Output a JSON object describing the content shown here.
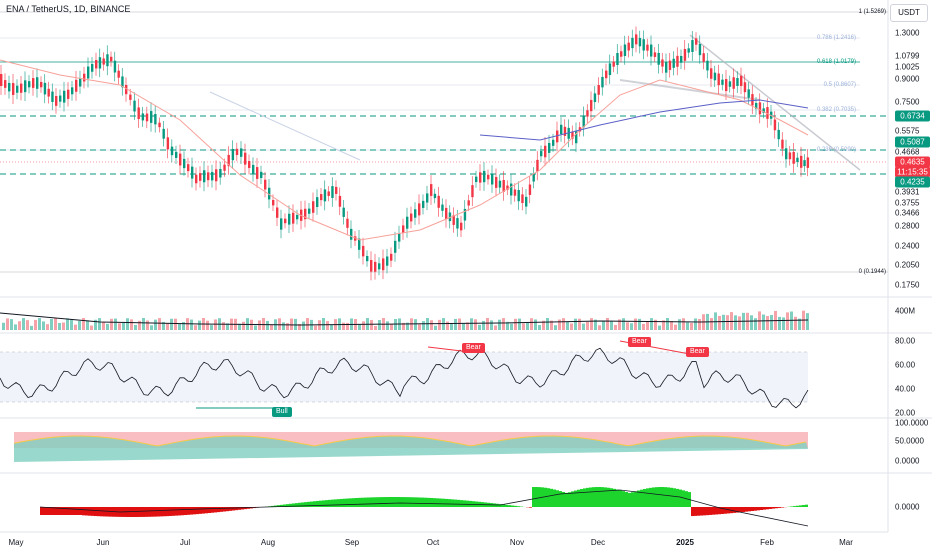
{
  "header": {
    "symbol_title": "ENA / TetherUS, 1D, BINANCE",
    "currency": "USDT"
  },
  "price_axis": {
    "labels": [
      "1.3000",
      "1.0799",
      "1.0025",
      "0.9000",
      "0.7500",
      "0.5575",
      "0.4668",
      "0.3931",
      "0.3755",
      "0.3466",
      "0.2800",
      "0.2400",
      "0.2050",
      "0.1750"
    ]
  },
  "price_badges": {
    "level_high": {
      "value": "0.6734",
      "color": "#089981"
    },
    "level_mid": {
      "value": "0.5087",
      "color": "#089981"
    },
    "last_price": {
      "value": "0.4635",
      "color": "#f23645"
    },
    "countdown": {
      "value": "11:15:35",
      "color": "#f23645"
    },
    "level_low": {
      "value": "0.4235",
      "color": "#089981"
    }
  },
  "fib_levels": [
    {
      "label": "1 (1.5269)",
      "color": "#131722"
    },
    {
      "label": "0.786 (1.2416)",
      "color": "#9db2d8"
    },
    {
      "label": "0.618 (1.0179)",
      "color": "#089981"
    },
    {
      "label": "0.5 (0.8607)",
      "color": "#9db2d8"
    },
    {
      "label": "0.382 (0.7035)",
      "color": "#9db2d8"
    },
    {
      "label": "0.236 (0.5090)",
      "color": "#9db2d8"
    },
    {
      "label": "0 (0.1944)",
      "color": "#131722"
    }
  ],
  "volume_axis": {
    "label": "400M"
  },
  "rsi_axis": {
    "labels": [
      "80.00",
      "60.00",
      "40.00",
      "20.00"
    ]
  },
  "osc_axis": {
    "labels": [
      "100.0000",
      "50.0000",
      "0.0000"
    ]
  },
  "macd_axis": {
    "labels": [
      "0.0000"
    ]
  },
  "time_axis": {
    "labels": [
      "May",
      "Jun",
      "Jul",
      "Aug",
      "Sep",
      "Oct",
      "Nov",
      "Dec",
      "2025",
      "Feb",
      "Mar"
    ]
  },
  "signals": {
    "bear_tag": "Bear",
    "bull_tag": "Bull"
  },
  "colors": {
    "up": "#089981",
    "down": "#f23645",
    "grid": "#e0e3eb",
    "fib": "#9db2d8"
  }
}
